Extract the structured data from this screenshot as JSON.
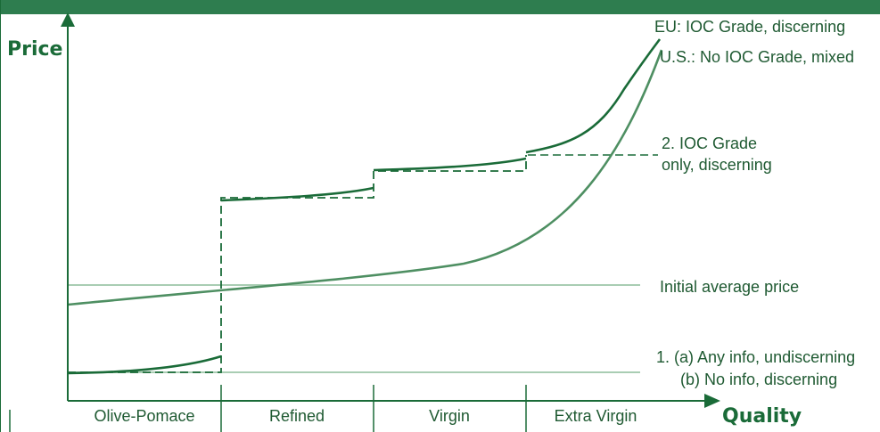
{
  "axes": {
    "y_title": "Price",
    "x_title": "Quality"
  },
  "categories": [
    "Olive-Pomace",
    "Refined",
    "Virgin",
    "Extra Virgin"
  ],
  "labels": {
    "eu_line": "EU: IOC Grade, discerning",
    "us_line": "U.S.: No IOC Grade, mixed",
    "ioc_line1": "2. IOC Grade",
    "ioc_line2": "only, discerning",
    "initial_avg": "Initial average price",
    "any_info_line1": "1. (a) Any info, undiscerning",
    "any_info_line2": "(b) No info, discerning"
  },
  "colors": {
    "banner": "#2e7d4f",
    "dark_green": "#1a6b38",
    "mid_green": "#4e8f62",
    "light_green": "#a9cdb3",
    "text": "#1f5a32"
  }
}
